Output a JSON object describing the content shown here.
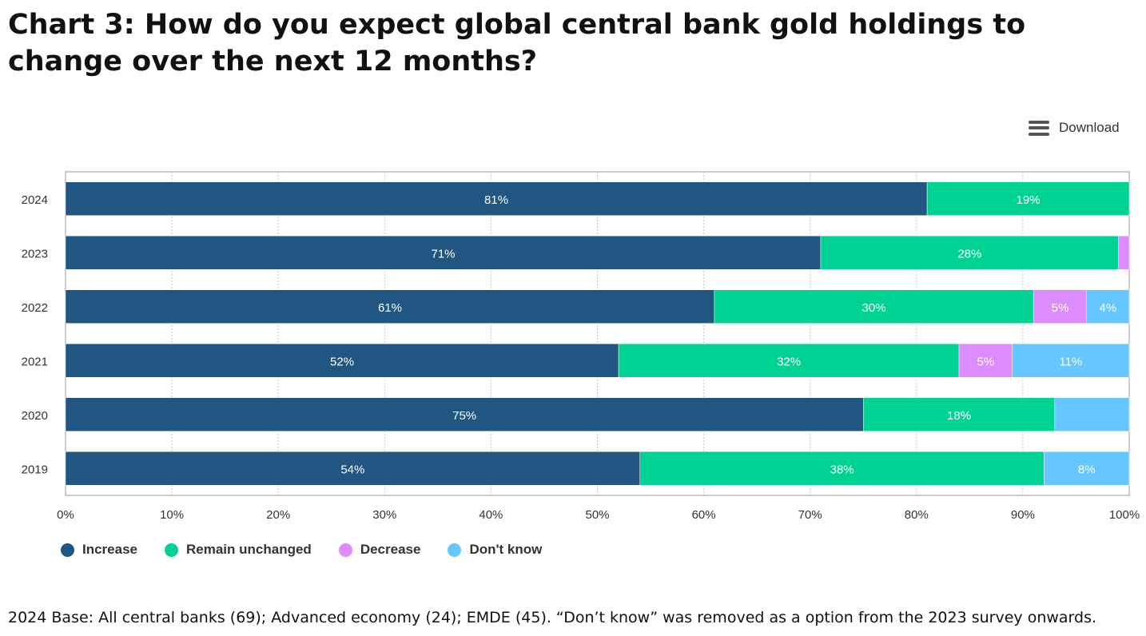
{
  "title": "Chart 3: How do you expect global central bank gold holdings to change over the next 12 months?",
  "download": {
    "label": "Download",
    "icon": "hamburger-menu-icon"
  },
  "footnote": "2024 Base: All central banks (69); Advanced economy (24); EMDE (45). “Don’t know” was removed as a option from the 2023 survey onwards.",
  "chart_data": {
    "type": "bar",
    "orientation": "horizontal",
    "stacked": "percent",
    "categories": [
      "2024",
      "2023",
      "2022",
      "2021",
      "2020",
      "2019"
    ],
    "series": [
      {
        "name": "Increase",
        "color": "#215683",
        "values": [
          81,
          71,
          61,
          52,
          75,
          54
        ],
        "labels": [
          "81%",
          "71%",
          "61%",
          "52%",
          "75%",
          "54%"
        ]
      },
      {
        "name": "Remain unchanged",
        "color": "#00d293",
        "values": [
          19,
          28,
          30,
          32,
          18,
          38
        ],
        "labels": [
          "19%",
          "28%",
          "30%",
          "32%",
          "18%",
          "38%"
        ]
      },
      {
        "name": "Decrease",
        "color": "#dd8cff",
        "values": [
          0,
          1,
          5,
          5,
          0,
          0
        ],
        "labels": [
          "",
          "",
          "5%",
          "5%",
          "",
          ""
        ]
      },
      {
        "name": "Don't know",
        "color": "#66c6ff",
        "values": [
          0,
          0,
          4,
          11,
          7,
          8
        ],
        "labels": [
          "",
          "",
          "4%",
          "11%",
          "",
          "8%"
        ]
      }
    ],
    "xlim": [
      0,
      100
    ],
    "xticks": [
      "0%",
      "10%",
      "20%",
      "30%",
      "40%",
      "50%",
      "60%",
      "70%",
      "80%",
      "90%",
      "100%"
    ],
    "grid": "vertical dotted",
    "legend": "bottom-left"
  }
}
